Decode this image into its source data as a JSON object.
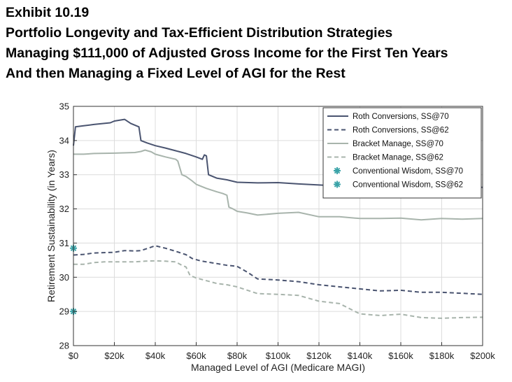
{
  "title_lines": [
    "Exhibit 10.19",
    "Portfolio Longevity and Tax-Efficient Distribution Strategies",
    "Managing $111,000 of Adjusted Gross Income for the First Ten Years",
    "And then Managing a Fixed Level of AGI for the Rest"
  ],
  "chart_data": {
    "type": "line",
    "xlabel": "Managed Level of AGI (Medicare MAGI)",
    "ylabel": "Retirement Sustainability (in Years)",
    "xlim": [
      0,
      200000
    ],
    "ylim": [
      28,
      35
    ],
    "x_ticks": [
      0,
      20000,
      40000,
      60000,
      80000,
      100000,
      120000,
      140000,
      160000,
      180000,
      200000
    ],
    "x_tick_labels": [
      "$0",
      "$20k",
      "$40k",
      "$60k",
      "$80k",
      "$100k",
      "$120k",
      "$140k",
      "$160k",
      "$180k",
      "$200k"
    ],
    "y_ticks": [
      28,
      29,
      30,
      31,
      32,
      33,
      34,
      35
    ],
    "y_tick_labels": [
      "28",
      "29",
      "30",
      "31",
      "32",
      "33",
      "34",
      "35"
    ],
    "legend_position": "top-right",
    "series": [
      {
        "name": "Roth Conversions, SS@70",
        "color": "#4a5470",
        "style": "solid",
        "points": [
          [
            0,
            33.85
          ],
          [
            1000,
            34.4
          ],
          [
            5000,
            34.43
          ],
          [
            10000,
            34.47
          ],
          [
            15000,
            34.5
          ],
          [
            18000,
            34.52
          ],
          [
            20000,
            34.57
          ],
          [
            25000,
            34.62
          ],
          [
            28000,
            34.5
          ],
          [
            32000,
            34.4
          ],
          [
            33000,
            34.0
          ],
          [
            36000,
            33.93
          ],
          [
            40000,
            33.85
          ],
          [
            45000,
            33.78
          ],
          [
            50000,
            33.7
          ],
          [
            55000,
            33.62
          ],
          [
            60000,
            33.52
          ],
          [
            63000,
            33.45
          ],
          [
            64000,
            33.58
          ],
          [
            65000,
            33.55
          ],
          [
            66000,
            33.0
          ],
          [
            70000,
            32.9
          ],
          [
            75000,
            32.85
          ],
          [
            80000,
            32.78
          ],
          [
            90000,
            32.76
          ],
          [
            100000,
            32.77
          ],
          [
            110000,
            32.73
          ],
          [
            120000,
            32.7
          ],
          [
            130000,
            32.67
          ],
          [
            140000,
            32.65
          ],
          [
            150000,
            32.63
          ],
          [
            160000,
            32.59
          ],
          [
            170000,
            32.58
          ],
          [
            180000,
            32.6
          ],
          [
            190000,
            32.63
          ],
          [
            200000,
            32.63
          ]
        ]
      },
      {
        "name": "Roth Conversions, SS@62",
        "color": "#4a5470",
        "style": "dashed",
        "points": [
          [
            0,
            30.65
          ],
          [
            5000,
            30.67
          ],
          [
            10000,
            30.71
          ],
          [
            20000,
            30.73
          ],
          [
            25000,
            30.78
          ],
          [
            30000,
            30.77
          ],
          [
            33000,
            30.78
          ],
          [
            35000,
            30.82
          ],
          [
            40000,
            30.92
          ],
          [
            45000,
            30.85
          ],
          [
            50000,
            30.76
          ],
          [
            55000,
            30.66
          ],
          [
            58000,
            30.55
          ],
          [
            62000,
            30.48
          ],
          [
            65000,
            30.45
          ],
          [
            70000,
            30.4
          ],
          [
            75000,
            30.35
          ],
          [
            80000,
            30.32
          ],
          [
            85000,
            30.15
          ],
          [
            90000,
            29.95
          ],
          [
            100000,
            29.92
          ],
          [
            110000,
            29.87
          ],
          [
            120000,
            29.78
          ],
          [
            130000,
            29.72
          ],
          [
            140000,
            29.66
          ],
          [
            150000,
            29.6
          ],
          [
            160000,
            29.62
          ],
          [
            170000,
            29.56
          ],
          [
            180000,
            29.56
          ],
          [
            190000,
            29.53
          ],
          [
            200000,
            29.5
          ]
        ]
      },
      {
        "name": "Bracket Manage, SS@70",
        "color": "#a8b4ac",
        "style": "solid",
        "points": [
          [
            0,
            33.6
          ],
          [
            5000,
            33.6
          ],
          [
            10000,
            33.62
          ],
          [
            20000,
            33.63
          ],
          [
            30000,
            33.65
          ],
          [
            33000,
            33.68
          ],
          [
            35000,
            33.72
          ],
          [
            38000,
            33.67
          ],
          [
            40000,
            33.6
          ],
          [
            45000,
            33.52
          ],
          [
            50000,
            33.45
          ],
          [
            51000,
            33.4
          ],
          [
            53000,
            33.0
          ],
          [
            55000,
            32.95
          ],
          [
            58000,
            32.82
          ],
          [
            60000,
            32.72
          ],
          [
            65000,
            32.6
          ],
          [
            70000,
            32.5
          ],
          [
            73000,
            32.45
          ],
          [
            75000,
            32.4
          ],
          [
            76000,
            32.05
          ],
          [
            78000,
            32.0
          ],
          [
            80000,
            31.93
          ],
          [
            85000,
            31.88
          ],
          [
            90000,
            31.82
          ],
          [
            100000,
            31.87
          ],
          [
            110000,
            31.9
          ],
          [
            120000,
            31.77
          ],
          [
            130000,
            31.77
          ],
          [
            140000,
            31.72
          ],
          [
            150000,
            31.72
          ],
          [
            160000,
            31.73
          ],
          [
            170000,
            31.68
          ],
          [
            180000,
            31.72
          ],
          [
            190000,
            31.7
          ],
          [
            200000,
            31.72
          ]
        ]
      },
      {
        "name": "Bracket Manage, SS@62",
        "color": "#a8b4ac",
        "style": "dashed",
        "points": [
          [
            0,
            30.38
          ],
          [
            5000,
            30.38
          ],
          [
            10000,
            30.43
          ],
          [
            15000,
            30.45
          ],
          [
            20000,
            30.45
          ],
          [
            30000,
            30.45
          ],
          [
            35000,
            30.47
          ],
          [
            40000,
            30.48
          ],
          [
            45000,
            30.47
          ],
          [
            50000,
            30.45
          ],
          [
            53000,
            30.35
          ],
          [
            55000,
            30.3
          ],
          [
            57000,
            30.05
          ],
          [
            60000,
            29.98
          ],
          [
            65000,
            29.9
          ],
          [
            70000,
            29.82
          ],
          [
            75000,
            29.78
          ],
          [
            80000,
            29.72
          ],
          [
            90000,
            29.52
          ],
          [
            100000,
            29.5
          ],
          [
            110000,
            29.47
          ],
          [
            120000,
            29.3
          ],
          [
            130000,
            29.23
          ],
          [
            140000,
            28.93
          ],
          [
            150000,
            28.88
          ],
          [
            160000,
            28.92
          ],
          [
            170000,
            28.82
          ],
          [
            180000,
            28.8
          ],
          [
            190000,
            28.82
          ],
          [
            200000,
            28.83
          ]
        ]
      },
      {
        "name": "Conventional Wisdom, SS@70",
        "color": "#3aa3a8",
        "style": "marker",
        "marker": "asterisk",
        "points": [
          [
            0,
            30.85
          ]
        ]
      },
      {
        "name": "Conventional Wisdom, SS@62",
        "color": "#3aa3a8",
        "style": "marker",
        "marker": "asterisk",
        "points": [
          [
            0,
            29.0
          ]
        ]
      }
    ]
  }
}
